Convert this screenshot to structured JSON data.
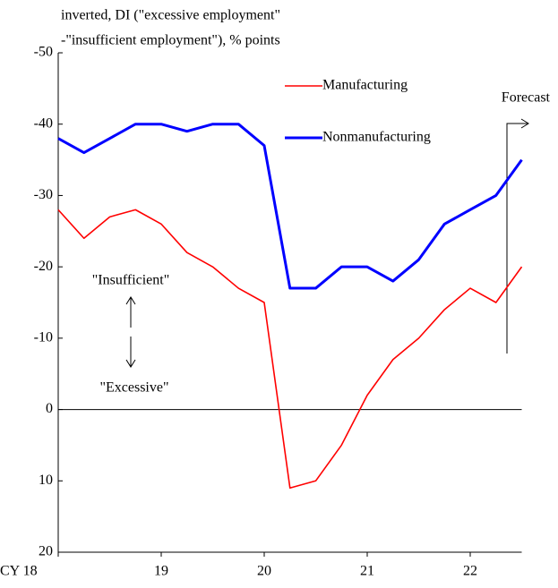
{
  "chart_data": {
    "type": "line",
    "y_label": [
      "inverted, DI (\"excessive employment\"",
      "-\"insufficient employment\"), % points"
    ],
    "categories": [
      "CY 18",
      null,
      null,
      null,
      "19",
      null,
      null,
      null,
      "20",
      null,
      null,
      null,
      "21",
      null,
      null,
      null,
      "22",
      null,
      null
    ],
    "series": [
      {
        "name": "Manufacturing",
        "color": "#ff0000",
        "values": [
          -28,
          -24,
          -27,
          -28,
          -26,
          -22,
          -20,
          -17,
          -15,
          11,
          10,
          5,
          -2,
          -7,
          -10,
          -14,
          -17,
          -15,
          -20
        ]
      },
      {
        "name": "Nonmanufacturing",
        "color": "#0000ff",
        "values": [
          -38,
          -36,
          -38,
          -40,
          -40,
          -39,
          -40,
          -40,
          -37,
          -17,
          -17,
          -20,
          -20,
          -18,
          -21,
          -26,
          -28,
          -30,
          -35
        ]
      }
    ],
    "ylim": [
      -50,
      20
    ],
    "y_inverted": true,
    "yticks": [
      -50,
      -40,
      -30,
      -20,
      -10,
      0,
      10,
      20
    ],
    "annotations": {
      "forecast": "Forecast",
      "insufficient": "\"Insufficient\"",
      "excessive": "\"Excessive\""
    }
  }
}
